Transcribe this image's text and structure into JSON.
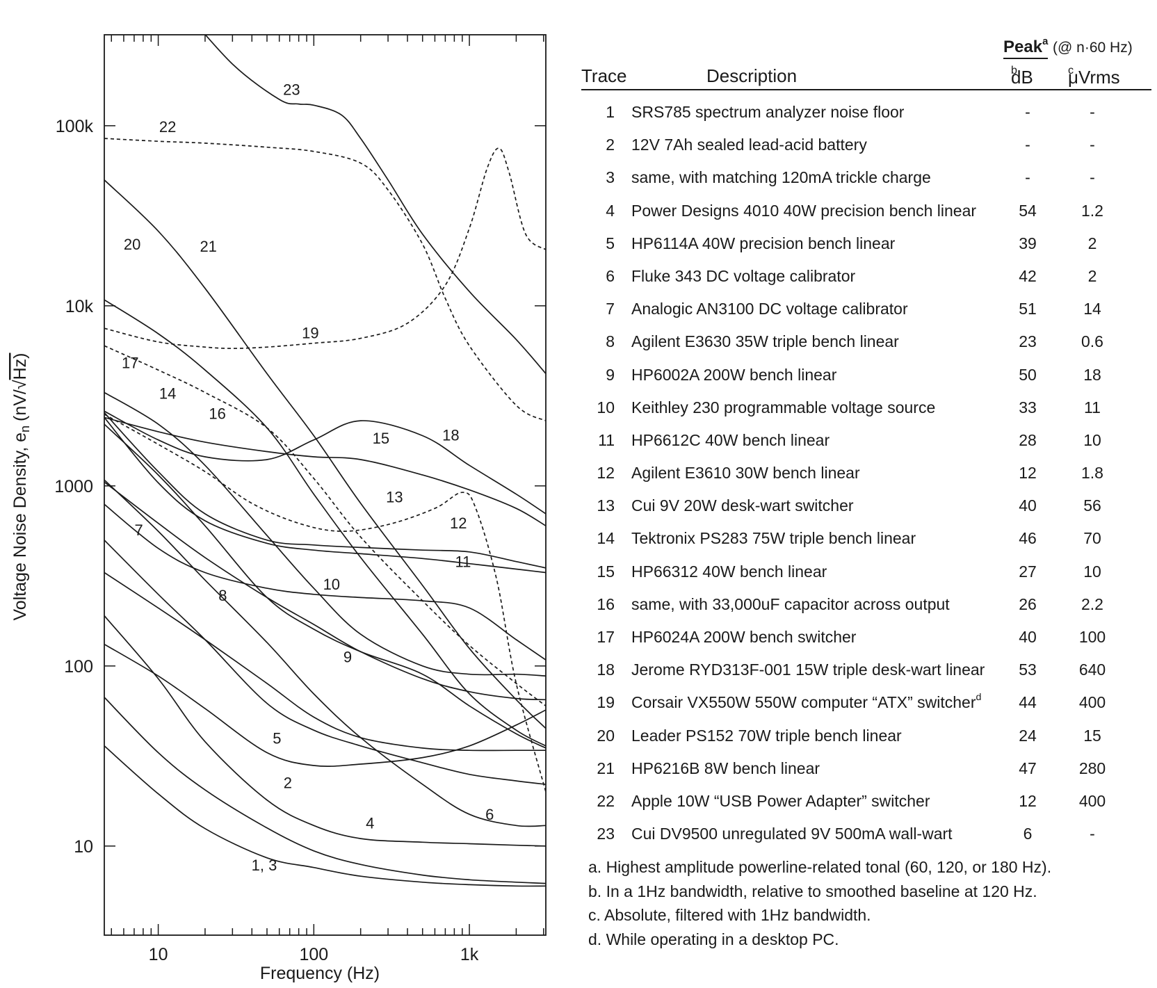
{
  "chart_data": {
    "type": "line",
    "xlabel": "Frequency (Hz)",
    "ylabel": "Voltage Noise Density, e",
    "ylabel_sub": "n",
    "ylabel_unit": "(nV/",
    "ylabel_unit_tail": "Hz)",
    "x_scale": "log",
    "y_scale": "log",
    "xlim": [
      4.5,
      3100
    ],
    "ylim": [
      3.2,
      320000
    ],
    "x_ticks": [
      {
        "value": 10,
        "label": "10"
      },
      {
        "value": 100,
        "label": "100"
      },
      {
        "value": 1000,
        "label": "1k"
      }
    ],
    "y_ticks": [
      {
        "value": 10,
        "label": "10"
      },
      {
        "value": 100,
        "label": "100"
      },
      {
        "value": 1000,
        "label": "1000"
      },
      {
        "value": 10000,
        "label": "10k"
      },
      {
        "value": 100000,
        "label": "100k"
      }
    ],
    "grid": false,
    "series": [
      {
        "name": "1, 3",
        "dashed": false,
        "label_at": [
          48,
          7.3
        ],
        "x": [
          4.5,
          10,
          20,
          50,
          100,
          200,
          500,
          1000,
          2000,
          3100
        ],
        "y": [
          36,
          19.5,
          12.5,
          8.6,
          7.6,
          6.8,
          6.3,
          6.1,
          6.0,
          6.0
        ]
      },
      {
        "name": "2",
        "dashed": false,
        "label_at": [
          68,
          21
        ],
        "x": [
          4.5,
          10,
          20,
          50,
          100,
          200,
          500,
          1000,
          2000,
          3100
        ],
        "y": [
          67,
          33,
          20.5,
          12.6,
          9.4,
          7.9,
          6.9,
          6.5,
          6.3,
          6.2
        ]
      },
      {
        "name": "4",
        "dashed": false,
        "label_at": [
          230,
          12.5
        ],
        "x": [
          4.5,
          10,
          20,
          50,
          100,
          200,
          500,
          1000,
          2000,
          3100
        ],
        "y": [
          190,
          85,
          38,
          18,
          13,
          11,
          10.5,
          10.3,
          10.1,
          10.0
        ]
      },
      {
        "name": "5",
        "dashed": false,
        "label_at": [
          58,
          37
        ],
        "x": [
          4.5,
          10,
          20,
          50,
          100,
          200,
          500,
          1000,
          2000,
          3100
        ],
        "y": [
          132,
          88,
          58,
          33,
          28,
          28.5,
          31,
          36,
          47,
          57
        ]
      },
      {
        "name": "6",
        "dashed": false,
        "label_at": [
          1350,
          14
        ],
        "x": [
          4.5,
          10,
          20,
          50,
          100,
          200,
          500,
          1000,
          2000,
          3100
        ],
        "y": [
          1080,
          560,
          300,
          135,
          70,
          40,
          22,
          15,
          13,
          13
        ]
      },
      {
        "name": "7",
        "dashed": false,
        "label_at": [
          7.5,
          530
        ],
        "x": [
          4.5,
          10,
          20,
          50,
          100,
          200,
          500,
          1000,
          2000,
          3100
        ],
        "y": [
          500,
          250,
          140,
          62,
          44,
          36,
          29,
          25,
          23,
          22
        ]
      },
      {
        "name": "8",
        "dashed": false,
        "label_at": [
          26,
          230
        ],
        "x": [
          4.5,
          10,
          20,
          50,
          100,
          200,
          500,
          1000,
          2000,
          3100
        ],
        "y": [
          330,
          210,
          140,
          80,
          52,
          40,
          35,
          34,
          34,
          34
        ]
      },
      {
        "name": "9",
        "dashed": false,
        "label_at": [
          165,
          105
        ],
        "x": [
          4.5,
          10,
          20,
          50,
          100,
          200,
          500,
          1000,
          2000,
          3100
        ],
        "y": [
          1050,
          620,
          400,
          240,
          170,
          120,
          85,
          72,
          66,
          65
        ]
      },
      {
        "name": "10",
        "dashed": false,
        "label_at": [
          130,
          265
        ],
        "x": [
          4.5,
          10,
          20,
          50,
          100,
          200,
          500,
          1000,
          2000,
          3100
        ],
        "y": [
          790,
          450,
          330,
          270,
          250,
          240,
          230,
          210,
          140,
          108
        ]
      },
      {
        "name": "11",
        "dashed": false,
        "label_at": [
          910,
          355
        ],
        "x": [
          4.5,
          10,
          20,
          50,
          100,
          200,
          500,
          1000,
          2000,
          3100
        ],
        "y": [
          2400,
          1040,
          640,
          480,
          440,
          420,
          395,
          370,
          345,
          330
        ]
      },
      {
        "name": "12",
        "dashed": false,
        "label_at": [
          850,
          580
        ],
        "x": [
          4.5,
          10,
          20,
          50,
          100,
          200,
          500,
          1000,
          2000,
          3100
        ],
        "y": [
          2550,
          1200,
          700,
          500,
          470,
          455,
          440,
          430,
          380,
          350
        ]
      },
      {
        "name": "13",
        "dashed": true,
        "label_at": [
          330,
          810
        ],
        "x": [
          4.5,
          10,
          20,
          40,
          80,
          150,
          300,
          600,
          900,
          1100,
          1500,
          2000,
          3100
        ],
        "y": [
          2500,
          1700,
          1200,
          800,
          620,
          560,
          610,
          750,
          920,
          750,
          300,
          80,
          20
        ]
      },
      {
        "name": "14",
        "dashed": false,
        "label_at": [
          11.5,
          3050
        ],
        "x": [
          4.5,
          10,
          20,
          50,
          100,
          200,
          500,
          1000,
          2000,
          3100
        ],
        "y": [
          3300,
          2200,
          1300,
          530,
          270,
          150,
          100,
          90,
          90,
          88
        ]
      },
      {
        "name": "15",
        "dashed": false,
        "label_at": [
          270,
          1720
        ],
        "x": [
          4.5,
          10,
          20,
          50,
          100,
          200,
          500,
          1000,
          2000,
          3100
        ],
        "y": [
          2400,
          2000,
          1750,
          1550,
          1450,
          1400,
          1150,
          950,
          750,
          600
        ]
      },
      {
        "name": "16",
        "dashed": false,
        "label_at": [
          24,
          2350
        ],
        "x": [
          4.5,
          10,
          20,
          50,
          100,
          200,
          500,
          1000,
          2000,
          3100
        ],
        "y": [
          2200,
          1150,
          600,
          240,
          160,
          120,
          90,
          60,
          42,
          35
        ]
      },
      {
        "name": "17",
        "dashed": true,
        "label_at": [
          6.6,
          4500
        ],
        "x": [
          4.5,
          10,
          20,
          50,
          100,
          200,
          500,
          1000,
          2000,
          3100
        ],
        "y": [
          6000,
          4400,
          3300,
          2100,
          1100,
          520,
          230,
          130,
          80,
          60
        ]
      },
      {
        "name": "18",
        "dashed": false,
        "label_at": [
          760,
          1790
        ],
        "x": [
          4.5,
          10,
          20,
          50,
          100,
          200,
          500,
          1000,
          2000,
          3100
        ],
        "y": [
          2600,
          1800,
          1450,
          1400,
          1800,
          2300,
          1900,
          1300,
          900,
          700
        ]
      },
      {
        "name": "19",
        "dashed": true,
        "label_at": [
          95,
          6600
        ],
        "x": [
          4.5,
          10,
          20,
          30,
          50,
          100,
          200,
          400,
          700,
          1000,
          1300,
          1550,
          1800,
          2300,
          3100
        ],
        "y": [
          7500,
          6300,
          5900,
          5800,
          5900,
          6200,
          6600,
          8000,
          13000,
          27000,
          58000,
          75000,
          55000,
          25000,
          20500
        ]
      },
      {
        "name": "20",
        "dashed": false,
        "label_at": [
          6.8,
          20500
        ],
        "x": [
          4.5,
          10,
          20,
          50,
          100,
          200,
          500,
          1000,
          2000,
          3100
        ],
        "y": [
          10800,
          7000,
          4400,
          2100,
          900,
          400,
          150,
          70,
          44,
          36
        ]
      },
      {
        "name": "21",
        "dashed": false,
        "label_at": [
          21,
          20000
        ],
        "x": [
          4.5,
          10,
          20,
          50,
          100,
          200,
          500,
          1000,
          2000,
          3100
        ],
        "y": [
          50000,
          26000,
          12500,
          4200,
          1900,
          800,
          280,
          125,
          65,
          45
        ]
      },
      {
        "name": "22",
        "dashed": true,
        "label_at": [
          11.5,
          92000
        ],
        "x": [
          4.5,
          10,
          20,
          50,
          100,
          200,
          300,
          500,
          700,
          1000,
          2000,
          3100
        ],
        "y": [
          85000,
          82000,
          80000,
          76000,
          72000,
          62000,
          44000,
          22000,
          11000,
          6000,
          2800,
          2300
        ]
      },
      {
        "name": "23",
        "dashed": false,
        "label_at": [
          72,
          148000
        ],
        "x": [
          14,
          30,
          60,
          80,
          100,
          150,
          200,
          300,
          500,
          1000,
          2000,
          3100
        ],
        "y": [
          460000,
          220000,
          140000,
          132000,
          130000,
          115000,
          85000,
          50000,
          25000,
          12000,
          6500,
          4200
        ]
      }
    ]
  },
  "legend_table": {
    "peak_title": "Peak",
    "peak_title_sup": "a",
    "peak_subtitle": "(@ n·60 Hz)",
    "col_trace": "Trace",
    "col_description": "Description",
    "col_db": "dB",
    "col_db_sup": "b",
    "col_uvrms": "μVrms",
    "col_uvrms_sup": "c",
    "rows": [
      {
        "trace": "1",
        "description": "SRS785 spectrum analyzer noise floor",
        "db": "-",
        "uvrms": "-"
      },
      {
        "trace": "2",
        "description": "12V 7Ah sealed lead-acid battery",
        "db": "-",
        "uvrms": "-"
      },
      {
        "trace": "3",
        "description": "same, with matching 120mA trickle charge",
        "db": "-",
        "uvrms": "-"
      },
      {
        "trace": "4",
        "description": "Power Designs 4010 40W precision bench linear",
        "db": "54",
        "uvrms": "1.2"
      },
      {
        "trace": "5",
        "description": "HP6114A 40W precision bench linear",
        "db": "39",
        "uvrms": "2"
      },
      {
        "trace": "6",
        "description": "Fluke 343 DC voltage calibrator",
        "db": "42",
        "uvrms": "2"
      },
      {
        "trace": "7",
        "description": "Analogic AN3100 DC voltage calibrator",
        "db": "51",
        "uvrms": "14"
      },
      {
        "trace": "8",
        "description": "Agilent E3630 35W triple bench linear",
        "db": "23",
        "uvrms": "0.6"
      },
      {
        "trace": "9",
        "description": "HP6002A 200W bench linear",
        "db": "50",
        "uvrms": "18"
      },
      {
        "trace": "10",
        "description": "Keithley 230 programmable voltage source",
        "db": "33",
        "uvrms": "11"
      },
      {
        "trace": "11",
        "description": "HP6612C 40W bench linear",
        "db": "28",
        "uvrms": "10"
      },
      {
        "trace": "12",
        "description": "Agilent E3610 30W bench linear",
        "db": "12",
        "uvrms": "1.8"
      },
      {
        "trace": "13",
        "description": "Cui 9V 20W desk-wart switcher",
        "db": "40",
        "uvrms": "56"
      },
      {
        "trace": "14",
        "description": "Tektronix PS283 75W triple bench linear",
        "db": "46",
        "uvrms": "70"
      },
      {
        "trace": "15",
        "description": "HP66312 40W bench linear",
        "db": "27",
        "uvrms": "10"
      },
      {
        "trace": "16",
        "description": "same, with 33,000uF capacitor across output",
        "db": "26",
        "uvrms": "2.2"
      },
      {
        "trace": "17",
        "description": "HP6024A 200W bench switcher",
        "db": "40",
        "uvrms": "100"
      },
      {
        "trace": "18",
        "description": "Jerome RYD313F-001 15W triple desk-wart linear",
        "db": "53",
        "uvrms": "640"
      },
      {
        "trace": "19",
        "description": "Corsair VX550W 550W computer “ATX” switcher",
        "sup": "d",
        "db": "44",
        "uvrms": "400"
      },
      {
        "trace": "20",
        "description": "Leader PS152 70W triple bench linear",
        "db": "24",
        "uvrms": "15"
      },
      {
        "trace": "21",
        "description": "HP6216B 8W bench linear",
        "db": "47",
        "uvrms": "280"
      },
      {
        "trace": "22",
        "description": "Apple 10W “USB Power Adapter” switcher",
        "db": "12",
        "uvrms": "400"
      },
      {
        "trace": "23",
        "description": "Cui DV9500 unregulated 9V 500mA wall-wart",
        "db": "6",
        "uvrms": "-"
      }
    ],
    "notes": [
      "a.  Highest amplitude powerline-related tonal (60, 120, or 180 Hz).",
      "b.  In a 1Hz bandwidth, relative to smoothed baseline at 120 Hz.",
      "c.  Absolute, filtered with 1Hz bandwidth.",
      "d.  While operating in a desktop PC."
    ]
  }
}
